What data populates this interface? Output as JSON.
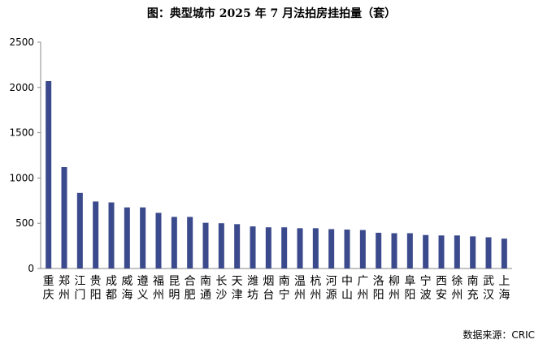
{
  "chart_data": {
    "type": "bar",
    "title": "图：典型城市 2025 年 7 月法拍房挂拍量（套）",
    "categories": [
      "重庆",
      "郑州",
      "江门",
      "贵阳",
      "成都",
      "威海",
      "遵义",
      "福州",
      "昆明",
      "合肥",
      "南通",
      "长沙",
      "天津",
      "潍坊",
      "烟台",
      "南宁",
      "温州",
      "杭州",
      "河源",
      "中山",
      "广州",
      "洛阳",
      "柳州",
      "阜阳",
      "宁波",
      "西安",
      "徐州",
      "南充",
      "武汉",
      "上海"
    ],
    "values": [
      2070,
      1120,
      835,
      740,
      730,
      675,
      675,
      615,
      570,
      570,
      505,
      500,
      490,
      465,
      455,
      455,
      445,
      445,
      435,
      430,
      425,
      395,
      390,
      390,
      370,
      365,
      365,
      355,
      345,
      330
    ],
    "yticks": [
      0,
      500,
      1000,
      1500,
      2000,
      2500
    ],
    "ylim": [
      0,
      2500
    ],
    "grid": false,
    "bar_color": "#3b4a8c"
  },
  "source": "数据来源：CRIC"
}
